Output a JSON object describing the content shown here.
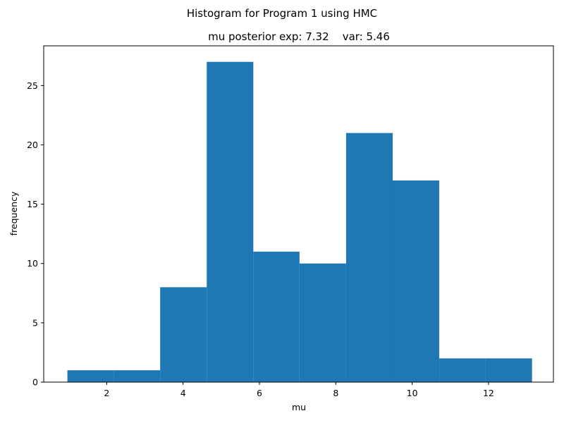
{
  "chart_data": {
    "type": "bar",
    "suptitle": "Histogram for Program 1 using HMC",
    "title": "mu posterior exp: 7.32    var: 5.46",
    "xlabel": "mu",
    "ylabel": "frequency",
    "bar_color": "#1f77b4",
    "xlim": [
      0.35,
      13.7
    ],
    "ylim": [
      0,
      28.35
    ],
    "xticks": [
      2,
      4,
      6,
      8,
      10,
      12
    ],
    "yticks": [
      0,
      5,
      10,
      15,
      20,
      25
    ],
    "bins": [
      {
        "x0": 0.97,
        "x1": 2.19,
        "value": 1
      },
      {
        "x0": 2.19,
        "x1": 3.4,
        "value": 1
      },
      {
        "x0": 3.4,
        "x1": 4.62,
        "value": 8
      },
      {
        "x0": 4.62,
        "x1": 5.84,
        "value": 27
      },
      {
        "x0": 5.84,
        "x1": 7.05,
        "value": 11
      },
      {
        "x0": 7.05,
        "x1": 8.27,
        "value": 10
      },
      {
        "x0": 8.27,
        "x1": 9.49,
        "value": 21
      },
      {
        "x0": 9.49,
        "x1": 10.71,
        "value": 17
      },
      {
        "x0": 10.71,
        "x1": 11.92,
        "value": 2
      },
      {
        "x0": 11.92,
        "x1": 13.14,
        "value": 2
      }
    ]
  }
}
